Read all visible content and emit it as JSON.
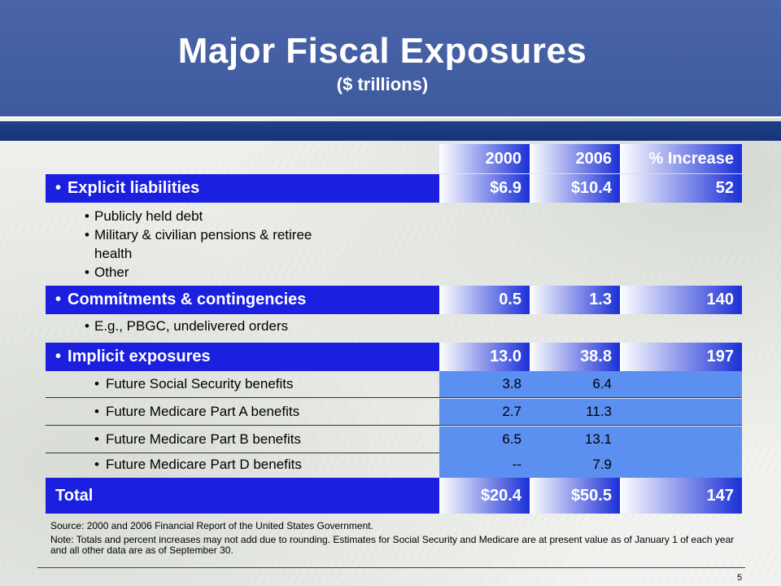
{
  "header": {
    "title": "Major Fiscal Exposures",
    "subtitle": "($ trillions)"
  },
  "columns": {
    "c2000": "2000",
    "c2006": "2006",
    "pct": "% Increase"
  },
  "explicit": {
    "label": "Explicit liabilities",
    "v2000": "$6.9",
    "v2006": "$10.4",
    "pct": "52",
    "items": [
      "Publicly held debt",
      "Military & civilian pensions & retiree",
      "health",
      "Other"
    ]
  },
  "commitments": {
    "label": "Commitments & contingencies",
    "v2000": "0.5",
    "v2006": "1.3",
    "pct": "140",
    "items": [
      "E.g., PBGC, undelivered orders"
    ]
  },
  "implicit": {
    "label": "Implicit exposures",
    "v2000": "13.0",
    "v2006": "38.8",
    "pct": "197",
    "rows": [
      {
        "label": "Future Social Security benefits",
        "v2000": "3.8",
        "v2006": "6.4"
      },
      {
        "label": "Future Medicare Part A benefits",
        "v2000": "2.7",
        "v2006": "11.3"
      },
      {
        "label": "Future Medicare Part B benefits",
        "v2000": "6.5",
        "v2006": "13.1"
      },
      {
        "label": "Future Medicare Part D benefits",
        "v2000": "--",
        "v2006": "7.9"
      }
    ]
  },
  "total": {
    "label": "Total",
    "v2000": "$20.4",
    "v2006": "$50.5",
    "pct": "147"
  },
  "footer": {
    "source": "Source:  2000 and 2006 Financial Report of the United States Government.",
    "note": "Note: Totals and percent  increases may not add due to rounding.  Estimates for Social Security and Medicare are at present value as of January 1 of each year and all other data are as of September 30.",
    "page": "5"
  }
}
